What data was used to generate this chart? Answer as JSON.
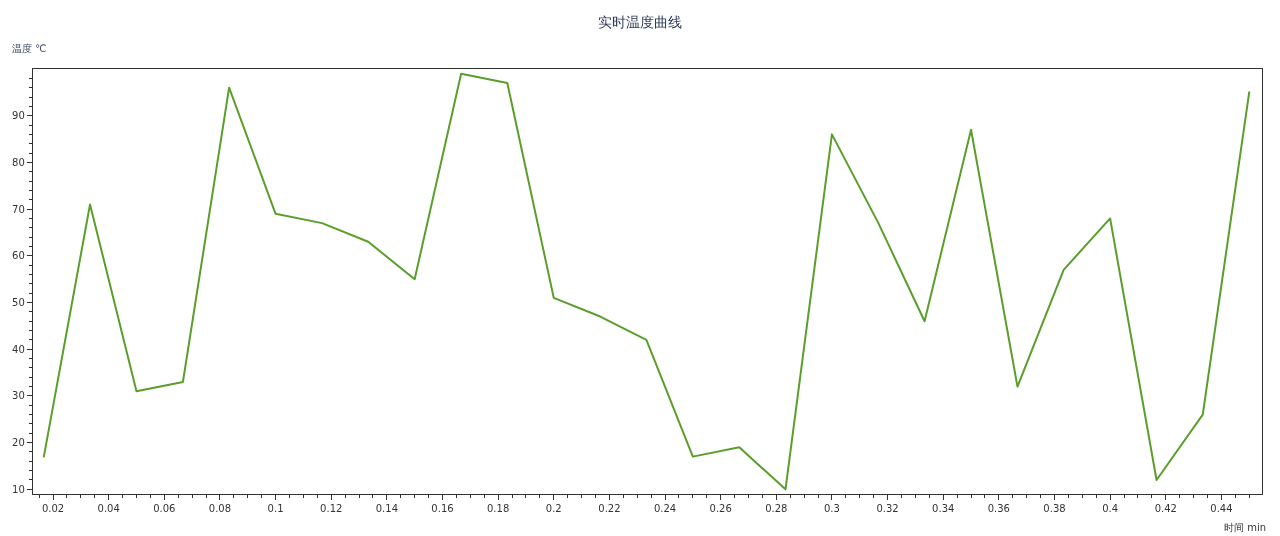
{
  "chart_data": {
    "type": "line",
    "title": "实时温度曲线",
    "xlabel": "时间 min",
    "ylabel": "温度 ℃",
    "x": [
      0.0167,
      0.0333,
      0.05,
      0.0667,
      0.0833,
      0.1,
      0.1167,
      0.1333,
      0.15,
      0.1667,
      0.1833,
      0.2,
      0.2167,
      0.2333,
      0.25,
      0.2667,
      0.2833,
      0.3,
      0.3167,
      0.3333,
      0.35,
      0.3667,
      0.3833,
      0.4,
      0.4167,
      0.4333,
      0.45
    ],
    "series": [
      {
        "color": "#5a9e2b",
        "values": [
          17,
          71,
          31,
          33,
          96,
          69,
          67,
          63,
          55,
          99,
          97,
          51,
          47,
          42,
          17,
          19,
          10,
          86,
          67,
          46,
          87,
          32,
          57,
          68,
          12,
          26,
          95
        ]
      }
    ],
    "line_style": "solid",
    "xlim": [
      0.0128,
      0.4546
    ],
    "ylim": [
      9,
      100
    ],
    "xticks": [
      {
        "value": 0.015,
        "label": null
      },
      0.02,
      {
        "value": 0.025,
        "label": null
      },
      {
        "value": 0.03,
        "label": null
      },
      {
        "value": 0.035,
        "label": null
      },
      0.04,
      {
        "value": 0.045,
        "label": null
      },
      {
        "value": 0.05,
        "label": null
      },
      {
        "value": 0.055,
        "label": null
      },
      0.06,
      {
        "value": 0.065,
        "label": null
      },
      {
        "value": 0.07,
        "label": null
      },
      {
        "value": 0.075,
        "label": null
      },
      0.08,
      {
        "value": 0.085,
        "label": null
      },
      {
        "value": 0.09,
        "label": null
      },
      {
        "value": 0.095,
        "label": null
      },
      0.1,
      {
        "value": 0.105,
        "label": null
      },
      {
        "value": 0.11,
        "label": null
      },
      {
        "value": 0.115,
        "label": null
      },
      0.12,
      {
        "value": 0.125,
        "label": null
      },
      {
        "value": 0.13,
        "label": null
      },
      {
        "value": 0.135,
        "label": null
      },
      0.14,
      {
        "value": 0.145,
        "label": null
      },
      {
        "value": 0.15,
        "label": null
      },
      {
        "value": 0.155,
        "label": null
      },
      0.16,
      {
        "value": 0.165,
        "label": null
      },
      {
        "value": 0.17,
        "label": null
      },
      {
        "value": 0.175,
        "label": null
      },
      0.18,
      {
        "value": 0.185,
        "label": null
      },
      {
        "value": 0.19,
        "label": null
      },
      {
        "value": 0.195,
        "label": null
      },
      0.2,
      {
        "value": 0.205,
        "label": null
      },
      {
        "value": 0.21,
        "label": null
      },
      {
        "value": 0.215,
        "label": null
      },
      0.22,
      {
        "value": 0.225,
        "label": null
      },
      {
        "value": 0.23,
        "label": null
      },
      {
        "value": 0.235,
        "label": null
      },
      0.24,
      {
        "value": 0.245,
        "label": null
      },
      {
        "value": 0.25,
        "label": null
      },
      {
        "value": 0.255,
        "label": null
      },
      0.26,
      {
        "value": 0.265,
        "label": null
      },
      {
        "value": 0.27,
        "label": null
      },
      {
        "value": 0.275,
        "label": null
      },
      0.28,
      {
        "value": 0.285,
        "label": null
      },
      {
        "value": 0.29,
        "label": null
      },
      {
        "value": 0.295,
        "label": null
      },
      0.3,
      {
        "value": 0.305,
        "label": null
      },
      {
        "value": 0.31,
        "label": null
      },
      {
        "value": 0.315,
        "label": null
      },
      0.32,
      {
        "value": 0.325,
        "label": null
      },
      {
        "value": 0.33,
        "label": null
      },
      {
        "value": 0.335,
        "label": null
      },
      0.34,
      {
        "value": 0.345,
        "label": null
      },
      {
        "value": 0.35,
        "label": null
      },
      {
        "value": 0.355,
        "label": null
      },
      0.36,
      {
        "value": 0.365,
        "label": null
      },
      {
        "value": 0.37,
        "label": null
      },
      {
        "value": 0.375,
        "label": null
      },
      0.38,
      {
        "value": 0.385,
        "label": null
      },
      {
        "value": 0.39,
        "label": null
      },
      {
        "value": 0.395,
        "label": null
      },
      0.4,
      {
        "value": 0.405,
        "label": null
      },
      {
        "value": 0.41,
        "label": null
      },
      {
        "value": 0.415,
        "label": null
      },
      0.42,
      {
        "value": 0.425,
        "label": null
      },
      {
        "value": 0.43,
        "label": null
      },
      {
        "value": 0.435,
        "label": null
      },
      0.44,
      {
        "value": 0.445,
        "label": null
      },
      {
        "value": 0.45,
        "label": null
      }
    ],
    "yticks": [
      10,
      {
        "value": 12,
        "label": null
      },
      {
        "value": 14,
        "label": null
      },
      {
        "value": 16,
        "label": null
      },
      {
        "value": 18,
        "label": null
      },
      20,
      {
        "value": 22,
        "label": null
      },
      {
        "value": 24,
        "label": null
      },
      {
        "value": 26,
        "label": null
      },
      {
        "value": 28,
        "label": null
      },
      30,
      {
        "value": 32,
        "label": null
      },
      {
        "value": 34,
        "label": null
      },
      {
        "value": 36,
        "label": null
      },
      {
        "value": 38,
        "label": null
      },
      40,
      {
        "value": 42,
        "label": null
      },
      {
        "value": 44,
        "label": null
      },
      {
        "value": 46,
        "label": null
      },
      {
        "value": 48,
        "label": null
      },
      50,
      {
        "value": 52,
        "label": null
      },
      {
        "value": 54,
        "label": null
      },
      {
        "value": 56,
        "label": null
      },
      {
        "value": 58,
        "label": null
      },
      60,
      {
        "value": 62,
        "label": null
      },
      {
        "value": 64,
        "label": null
      },
      {
        "value": 66,
        "label": null
      },
      {
        "value": 68,
        "label": null
      },
      70,
      {
        "value": 72,
        "label": null
      },
      {
        "value": 74,
        "label": null
      },
      {
        "value": 76,
        "label": null
      },
      {
        "value": 78,
        "label": null
      },
      80,
      {
        "value": 82,
        "label": null
      },
      {
        "value": 84,
        "label": null
      },
      {
        "value": 86,
        "label": null
      },
      {
        "value": 88,
        "label": null
      },
      90,
      {
        "value": 92,
        "label": null
      },
      {
        "value": 94,
        "label": null
      },
      {
        "value": 96,
        "label": null
      },
      {
        "value": 98,
        "label": null
      }
    ]
  }
}
